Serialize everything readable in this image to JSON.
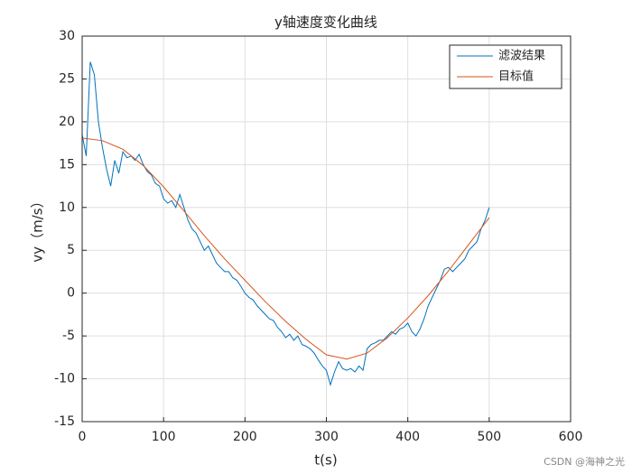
{
  "chart_data": {
    "type": "line",
    "title": "y轴速度变化曲线",
    "x_label": "t(s)",
    "y_label": "vy（m/s）",
    "xlim": [
      0,
      600
    ],
    "ylim": [
      -15,
      30
    ],
    "xticks": [
      0,
      100,
      200,
      300,
      400,
      500,
      600
    ],
    "yticks": [
      -15,
      -10,
      -5,
      0,
      5,
      10,
      15,
      20,
      25,
      30
    ],
    "grid": true,
    "legend_position": "northeast",
    "series": [
      {
        "name": "滤波结果",
        "color": "#0072BD",
        "x": [
          0,
          5,
          10,
          15,
          20,
          25,
          30,
          35,
          40,
          45,
          50,
          55,
          60,
          65,
          70,
          75,
          80,
          85,
          90,
          95,
          100,
          105,
          110,
          115,
          120,
          125,
          130,
          135,
          140,
          145,
          150,
          155,
          160,
          165,
          170,
          175,
          180,
          185,
          190,
          195,
          200,
          205,
          210,
          215,
          220,
          225,
          230,
          235,
          240,
          245,
          250,
          255,
          260,
          265,
          270,
          275,
          280,
          285,
          290,
          295,
          300,
          305,
          310,
          315,
          320,
          325,
          330,
          335,
          340,
          345,
          350,
          355,
          360,
          365,
          370,
          375,
          380,
          385,
          390,
          395,
          400,
          405,
          410,
          415,
          420,
          425,
          430,
          435,
          440,
          445,
          450,
          455,
          460,
          465,
          470,
          475,
          480,
          485,
          490,
          495,
          500
        ],
        "values": [
          18.5,
          16.0,
          27.0,
          25.5,
          20.0,
          17.0,
          14.5,
          12.5,
          15.5,
          14.0,
          16.5,
          15.8,
          16.0,
          15.5,
          16.2,
          15.0,
          14.2,
          13.8,
          12.8,
          12.5,
          11.0,
          10.5,
          10.8,
          10.0,
          11.5,
          10.0,
          8.5,
          7.5,
          7.0,
          6.0,
          5.0,
          5.5,
          4.5,
          3.5,
          3.0,
          2.5,
          2.5,
          1.8,
          1.5,
          0.8,
          0.0,
          -0.5,
          -0.8,
          -1.5,
          -2.0,
          -2.5,
          -3.0,
          -3.2,
          -4.0,
          -4.5,
          -5.2,
          -4.8,
          -5.5,
          -5.0,
          -6.0,
          -6.2,
          -6.5,
          -7.0,
          -7.8,
          -8.5,
          -9.0,
          -10.7,
          -9.2,
          -8.0,
          -8.8,
          -9.0,
          -8.8,
          -9.2,
          -8.5,
          -9.0,
          -6.5,
          -6.0,
          -5.8,
          -5.5,
          -5.5,
          -5.0,
          -4.5,
          -4.8,
          -4.2,
          -4.0,
          -3.5,
          -4.5,
          -5.0,
          -4.2,
          -3.0,
          -1.5,
          -0.5,
          0.5,
          1.5,
          2.8,
          3.0,
          2.5,
          3.0,
          3.5,
          4.0,
          5.0,
          5.5,
          6.0,
          7.5,
          8.5,
          10.0
        ]
      },
      {
        "name": "目标值",
        "color": "#D95319",
        "x": [
          0,
          25,
          50,
          75,
          100,
          125,
          150,
          175,
          200,
          225,
          250,
          275,
          300,
          325,
          350,
          375,
          400,
          425,
          450,
          475,
          500
        ],
        "values": [
          18.1,
          17.8,
          16.8,
          14.9,
          12.4,
          9.6,
          6.7,
          4.0,
          1.5,
          -1.0,
          -3.3,
          -5.4,
          -7.2,
          -7.7,
          -7.0,
          -5.2,
          -2.9,
          -0.3,
          2.6,
          5.7,
          8.8
        ]
      }
    ],
    "watermark": "CSDN @海神之光"
  }
}
